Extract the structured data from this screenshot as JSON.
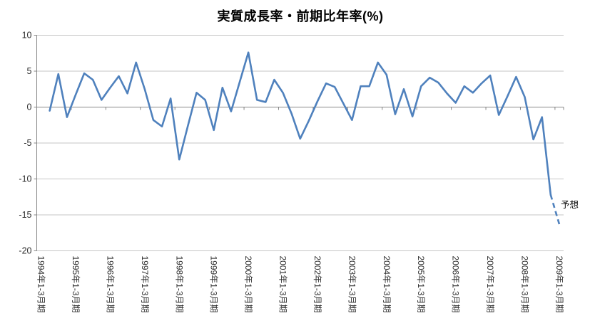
{
  "title": "実質成長率・前期比年率(%)",
  "chart_data": {
    "type": "line",
    "title": "実質成長率・前期比年率(%)",
    "x_labels": [
      "1994年1-3月期",
      "1995年1-3月期",
      "1996年1-3月期",
      "1997年1-3月期",
      "1998年1-3月期",
      "1999年1-3月期",
      "2000年1-3月期",
      "2001年1-3月期",
      "2002年1-3月期",
      "2003年1-3月期",
      "2004年1-3月期",
      "2005年1-3月期",
      "2006年1-3月期",
      "2007年1-3月期",
      "2008年1-3月期",
      "2009年1-3月期"
    ],
    "label_every_n_points": 4,
    "values": [
      null,
      -0.5,
      4.6,
      -1.4,
      1.7,
      4.7,
      3.8,
      1.0,
      2.7,
      4.3,
      1.9,
      6.2,
      2.5,
      -1.8,
      -2.7,
      1.2,
      -7.3,
      -2.6,
      2.0,
      1.0,
      -3.2,
      2.7,
      -0.6,
      3.5,
      7.6,
      1.0,
      0.7,
      3.8,
      2.0,
      -0.9,
      -4.4,
      -1.9,
      0.8,
      3.3,
      2.8,
      0.5,
      -1.8,
      2.9,
      2.9,
      6.2,
      4.5,
      -1.0,
      2.5,
      -1.3,
      2.9,
      4.1,
      3.4,
      1.9,
      0.6,
      2.9,
      2.0,
      3.3,
      4.4,
      -1.1,
      1.5,
      4.2,
      1.4,
      -4.5,
      -1.4,
      -12.2,
      -16.3
    ],
    "forecast_start_index": 59,
    "forecast_last_value": -16.3,
    "forecast_label": "予想",
    "ylim": [
      -20,
      10
    ],
    "y_ticks": [
      "10",
      "5",
      "0",
      "-5",
      "-10",
      "-15",
      "-20"
    ],
    "grid": "horizontal",
    "legend": "none",
    "colors": {
      "line": "#4F81BD",
      "grid": "#C6C6C6",
      "axis": "#878787",
      "text": "#2E2E2E",
      "title": "#000000",
      "background": "#FFFFFF"
    }
  }
}
